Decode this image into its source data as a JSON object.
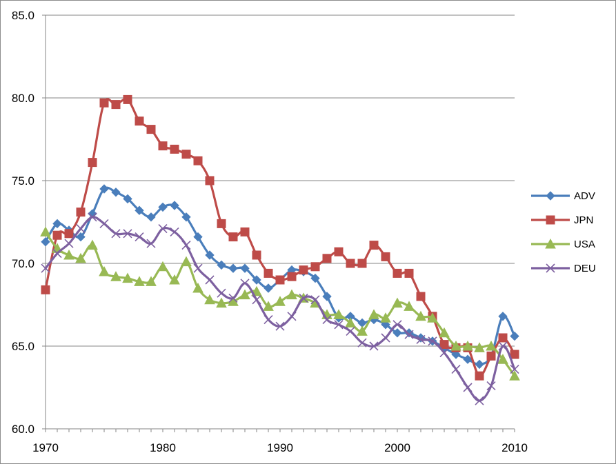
{
  "chart_data": {
    "type": "line",
    "title": "",
    "xlabel": "",
    "ylabel": "",
    "xlim": [
      1970,
      2010
    ],
    "ylim": [
      60,
      85
    ],
    "xticks": [
      1970,
      1980,
      1990,
      2000,
      2010
    ],
    "yticks": [
      "60.0",
      "65.0",
      "70.0",
      "75.0",
      "80.0",
      "85.0"
    ],
    "grid": "horizontal",
    "legend_position": "right",
    "x": [
      1970,
      1971,
      1972,
      1973,
      1974,
      1975,
      1976,
      1977,
      1978,
      1979,
      1980,
      1981,
      1982,
      1983,
      1984,
      1985,
      1986,
      1987,
      1988,
      1989,
      1990,
      1991,
      1992,
      1993,
      1994,
      1995,
      1996,
      1997,
      1998,
      1999,
      2000,
      2001,
      2002,
      2003,
      2004,
      2005,
      2006,
      2007,
      2008,
      2009,
      2010
    ],
    "series": [
      {
        "name": "ADV",
        "color": "#4a7ebb",
        "marker": "diamond",
        "values": [
          71.3,
          72.4,
          72.0,
          71.6,
          73.0,
          74.5,
          74.3,
          73.9,
          73.2,
          72.8,
          73.4,
          73.5,
          72.8,
          71.6,
          70.5,
          69.9,
          69.7,
          69.7,
          69.0,
          68.5,
          69.0,
          69.6,
          69.5,
          69.1,
          68.0,
          66.7,
          66.8,
          66.4,
          66.6,
          66.3,
          65.8,
          65.8,
          65.5,
          65.3,
          64.9,
          64.5,
          64.2,
          63.9,
          64.4,
          66.8,
          65.6
        ]
      },
      {
        "name": "JPN",
        "color": "#be4b48",
        "marker": "square",
        "values": [
          68.4,
          71.7,
          71.8,
          73.1,
          76.1,
          79.7,
          79.6,
          79.9,
          78.6,
          78.1,
          77.1,
          76.9,
          76.6,
          76.2,
          75.0,
          72.4,
          71.6,
          71.9,
          70.5,
          69.4,
          69.0,
          69.2,
          69.6,
          69.8,
          70.3,
          70.7,
          70.0,
          70.0,
          71.1,
          70.4,
          69.4,
          69.4,
          68.0,
          66.8,
          65.1,
          64.9,
          64.9,
          63.2,
          64.4,
          65.5,
          64.5
        ]
      },
      {
        "name": "USA",
        "color": "#98b954",
        "marker": "triangle",
        "values": [
          71.9,
          70.9,
          70.5,
          70.3,
          71.1,
          69.5,
          69.2,
          69.1,
          68.9,
          68.9,
          69.8,
          69.0,
          70.1,
          68.5,
          67.8,
          67.6,
          67.7,
          68.1,
          68.3,
          67.4,
          67.7,
          68.1,
          67.9,
          67.6,
          66.9,
          66.9,
          66.4,
          65.9,
          66.9,
          66.7,
          67.6,
          67.4,
          66.8,
          66.7,
          65.8,
          65.0,
          65.0,
          64.9,
          65.0,
          64.2,
          63.2
        ]
      },
      {
        "name": "DEU",
        "color": "#7d60a0",
        "marker": "x",
        "values": [
          69.7,
          70.6,
          71.2,
          72.1,
          72.8,
          72.4,
          71.8,
          71.8,
          71.6,
          71.2,
          72.1,
          71.9,
          71.1,
          69.7,
          69.0,
          68.2,
          67.9,
          68.8,
          67.8,
          66.6,
          66.2,
          66.8,
          67.9,
          67.8,
          66.6,
          66.3,
          65.9,
          65.2,
          65.0,
          65.5,
          66.3,
          65.7,
          65.4,
          65.3,
          64.6,
          63.6,
          62.5,
          61.7,
          62.6,
          65.0,
          63.6
        ]
      }
    ]
  }
}
